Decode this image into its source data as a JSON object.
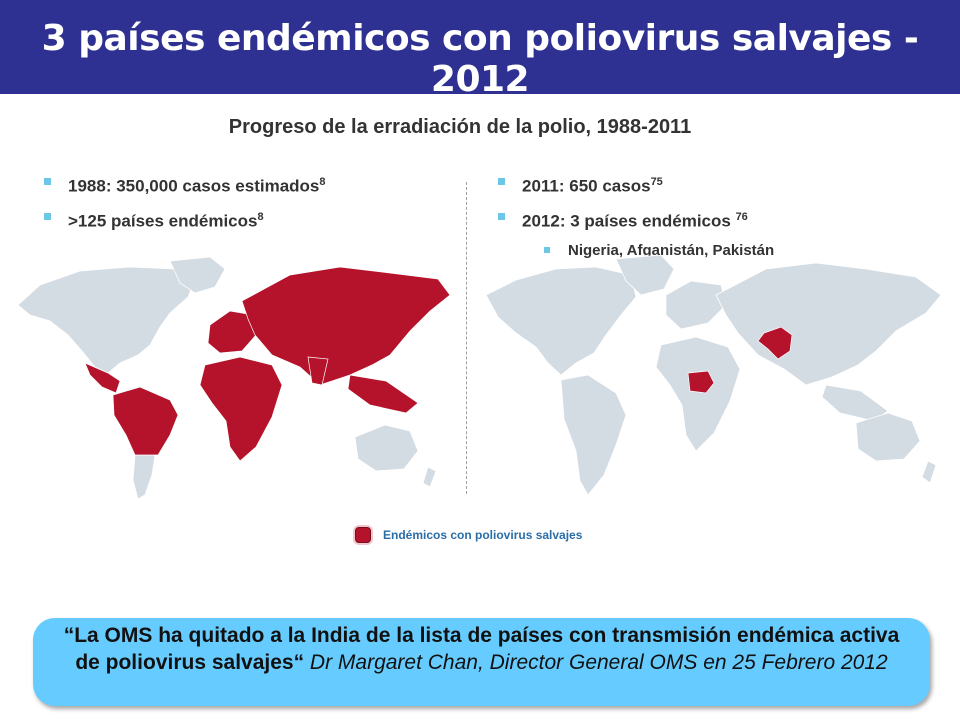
{
  "header": {
    "title": "3 países endémicos con poliovirus salvajes - 2012"
  },
  "subtitle": "Progreso de la erradiación de la polio, 1988-2011",
  "left": {
    "bullets": [
      {
        "text": "1988: 350,000 casos estimados",
        "ref": "8"
      },
      {
        "text": ">125 países endémicos",
        "ref": "8"
      }
    ]
  },
  "right": {
    "bullets": [
      {
        "text": "2011: 650 casos",
        "ref": "75"
      },
      {
        "text": "2012: 3 países endémicos ",
        "ref": "76"
      }
    ],
    "sub_bullet": "Nigeria, Afganistán, Pakistán"
  },
  "colors": {
    "header_bg": "#2e3192",
    "endemic": "#b5132b",
    "land": "#d3dbe3",
    "quote_bg": "#66ccff",
    "bullet": "#6cc6e6"
  },
  "legend": {
    "label": "Endémicos con poliovirus salvajes"
  },
  "quote": {
    "text": "“La OMS ha quitado a la India de la lista de países con transmisión endémica activa de poliovirus salvajes“",
    "attribution": " Dr Margaret Chan, Director General OMS en 25 Febrero 2012"
  }
}
